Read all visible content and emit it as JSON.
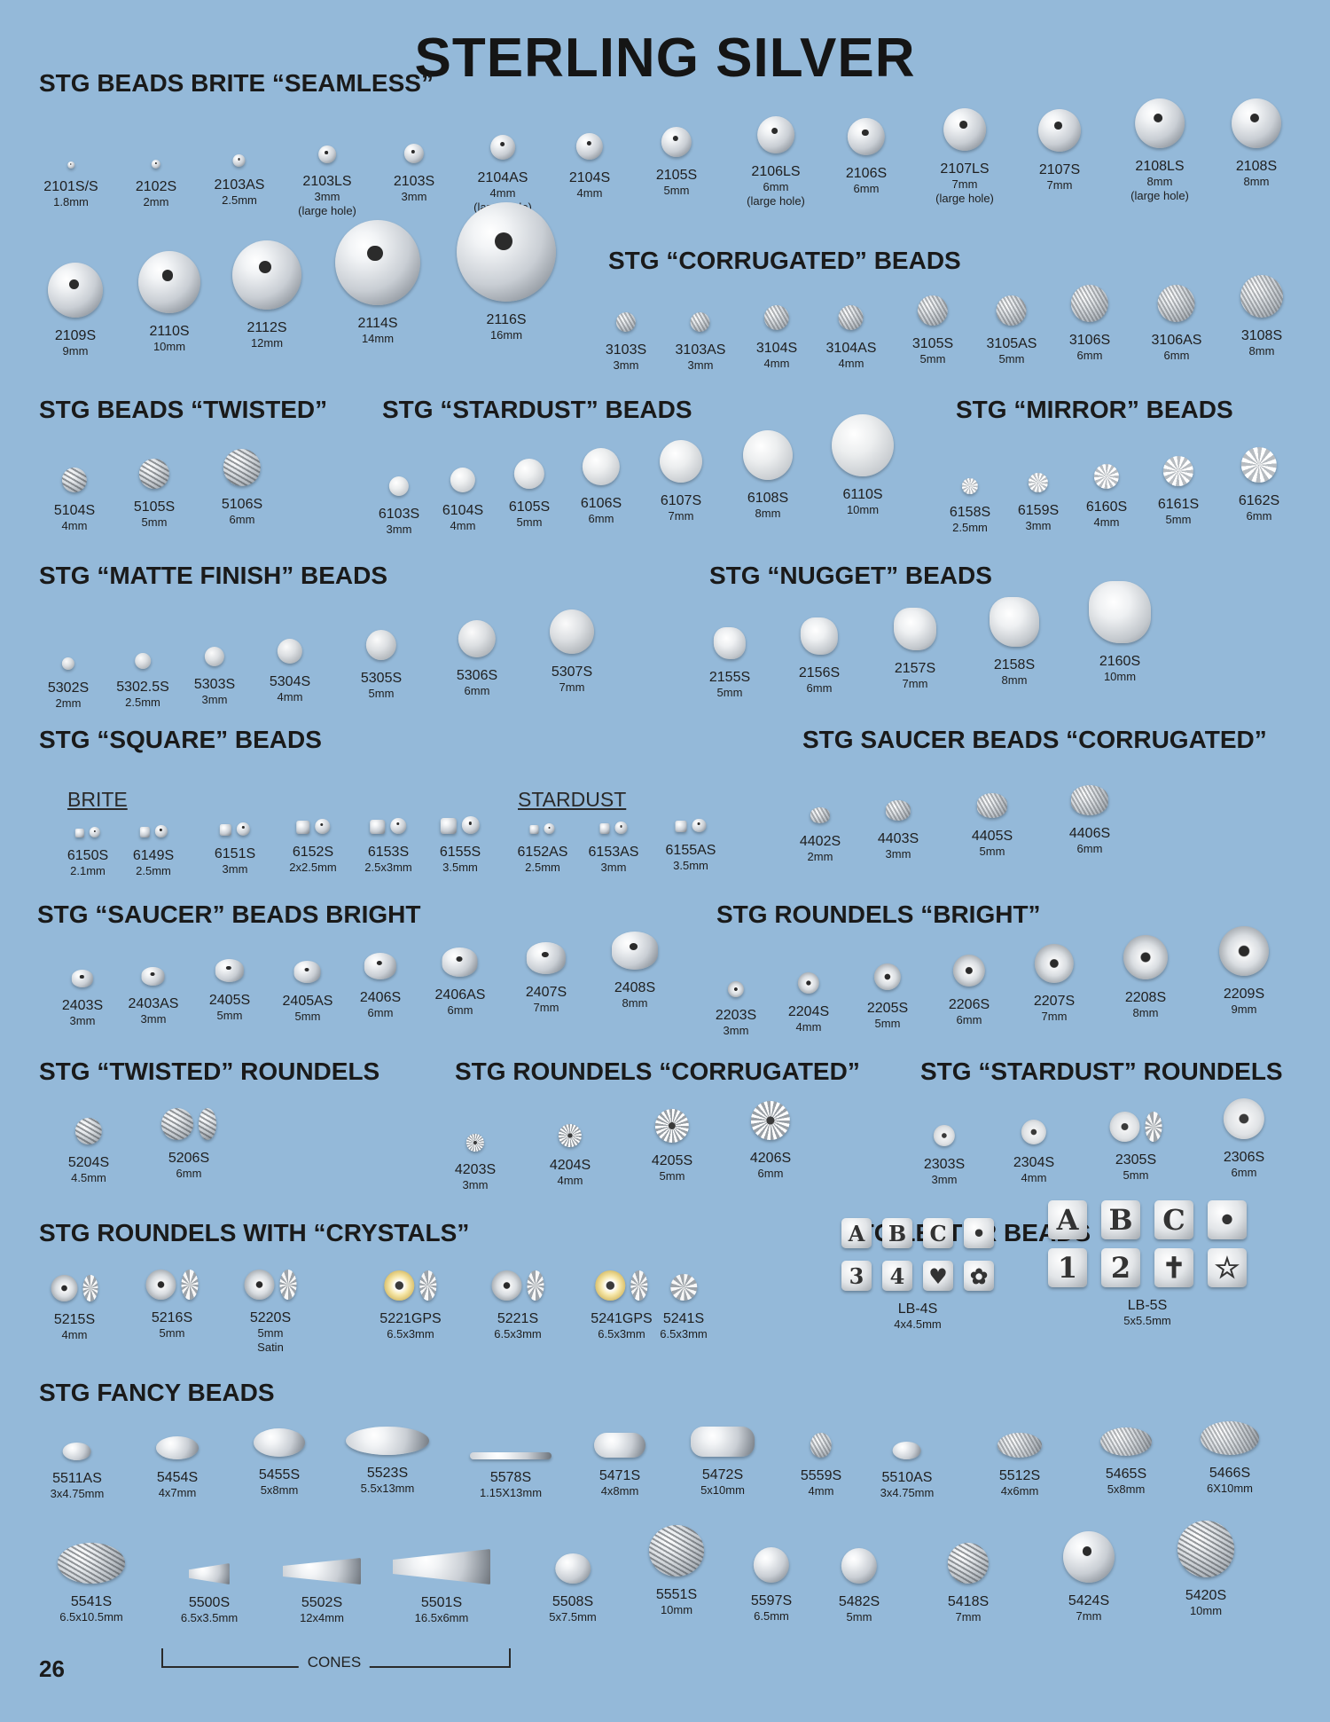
{
  "page": {
    "title": "STERLING SILVER",
    "page_number": "26",
    "cones_label": "CONES",
    "subs": {
      "brite": "BRITE",
      "stardust": "STARDUST"
    }
  },
  "sections": [
    {
      "id": "seamless",
      "title": "STG BEADS BRITE “SEAMLESS”",
      "items": [
        {
          "code": "2101S/S",
          "size": "1.8mm"
        },
        {
          "code": "2102S",
          "size": "2mm"
        },
        {
          "code": "2103AS",
          "size": "2.5mm"
        },
        {
          "code": "2103LS",
          "size": "3mm",
          "note": "(large hole)"
        },
        {
          "code": "2103S",
          "size": "3mm"
        },
        {
          "code": "2104AS",
          "size": "4mm",
          "note": "(large hole)"
        },
        {
          "code": "2104S",
          "size": "4mm"
        },
        {
          "code": "2105S",
          "size": "5mm"
        },
        {
          "code": "2106LS",
          "size": "6mm",
          "note": "(large hole)"
        },
        {
          "code": "2106S",
          "size": "6mm"
        },
        {
          "code": "2107LS",
          "size": "7mm",
          "note": "(large hole)"
        },
        {
          "code": "2107S",
          "size": "7mm"
        },
        {
          "code": "2108LS",
          "size": "8mm",
          "note": "(large hole)"
        },
        {
          "code": "2108S",
          "size": "8mm"
        },
        {
          "code": "2109S",
          "size": "9mm"
        },
        {
          "code": "2110S",
          "size": "10mm"
        },
        {
          "code": "2112S",
          "size": "12mm"
        },
        {
          "code": "2114S",
          "size": "14mm"
        },
        {
          "code": "2116S",
          "size": "16mm"
        }
      ]
    },
    {
      "id": "corrugated",
      "title": "STG “CORRUGATED” BEADS",
      "items": [
        {
          "code": "3103S",
          "size": "3mm"
        },
        {
          "code": "3103AS",
          "size": "3mm"
        },
        {
          "code": "3104S",
          "size": "4mm"
        },
        {
          "code": "3104AS",
          "size": "4mm"
        },
        {
          "code": "3105S",
          "size": "5mm"
        },
        {
          "code": "3105AS",
          "size": "5mm"
        },
        {
          "code": "3106S",
          "size": "6mm"
        },
        {
          "code": "3106AS",
          "size": "6mm"
        },
        {
          "code": "3108S",
          "size": "8mm"
        }
      ]
    },
    {
      "id": "twisted",
      "title": "STG BEADS “TWISTED”",
      "items": [
        {
          "code": "5104S",
          "size": "4mm"
        },
        {
          "code": "5105S",
          "size": "5mm"
        },
        {
          "code": "5106S",
          "size": "6mm"
        }
      ]
    },
    {
      "id": "stardust",
      "title": "STG “STARDUST” BEADS",
      "items": [
        {
          "code": "6103S",
          "size": "3mm"
        },
        {
          "code": "6104S",
          "size": "4mm"
        },
        {
          "code": "6105S",
          "size": "5mm"
        },
        {
          "code": "6106S",
          "size": "6mm"
        },
        {
          "code": "6107S",
          "size": "7mm"
        },
        {
          "code": "6108S",
          "size": "8mm"
        },
        {
          "code": "6110S",
          "size": "10mm"
        }
      ]
    },
    {
      "id": "mirror",
      "title": "STG “MIRROR” BEADS",
      "items": [
        {
          "code": "6158S",
          "size": "2.5mm"
        },
        {
          "code": "6159S",
          "size": "3mm"
        },
        {
          "code": "6160S",
          "size": "4mm"
        },
        {
          "code": "6161S",
          "size": "5mm"
        },
        {
          "code": "6162S",
          "size": "6mm"
        }
      ]
    },
    {
      "id": "matte",
      "title": "STG “MATTE FINISH” BEADS",
      "items": [
        {
          "code": "5302S",
          "size": "2mm"
        },
        {
          "code": "5302.5S",
          "size": "2.5mm"
        },
        {
          "code": "5303S",
          "size": "3mm"
        },
        {
          "code": "5304S",
          "size": "4mm"
        },
        {
          "code": "5305S",
          "size": "5mm"
        },
        {
          "code": "5306S",
          "size": "6mm"
        },
        {
          "code": "5307S",
          "size": "7mm"
        }
      ]
    },
    {
      "id": "nugget",
      "title": "STG “NUGGET” BEADS",
      "items": [
        {
          "code": "2155S",
          "size": "5mm"
        },
        {
          "code": "2156S",
          "size": "6mm"
        },
        {
          "code": "2157S",
          "size": "7mm"
        },
        {
          "code": "2158S",
          "size": "8mm"
        },
        {
          "code": "2160S",
          "size": "10mm"
        }
      ]
    },
    {
      "id": "square",
      "title": "STG “SQUARE” BEADS",
      "items": [
        {
          "code": "6150S",
          "size": "2.1mm"
        },
        {
          "code": "6149S",
          "size": "2.5mm"
        },
        {
          "code": "6151S",
          "size": "3mm"
        },
        {
          "code": "6152S",
          "size": "2x2.5mm"
        },
        {
          "code": "6153S",
          "size": "2.5x3mm"
        },
        {
          "code": "6155S",
          "size": "3.5mm"
        },
        {
          "code": "6152AS",
          "size": "2.5mm"
        },
        {
          "code": "6153AS",
          "size": "3mm"
        },
        {
          "code": "6155AS",
          "size": "3.5mm"
        }
      ]
    },
    {
      "id": "saucercorr",
      "title": "STG SAUCER BEADS “CORRUGATED”",
      "items": [
        {
          "code": "4402S",
          "size": "2mm"
        },
        {
          "code": "4403S",
          "size": "3mm"
        },
        {
          "code": "4405S",
          "size": "5mm"
        },
        {
          "code": "4406S",
          "size": "6mm"
        }
      ]
    },
    {
      "id": "saucerbright",
      "title": "STG “SAUCER” BEADS BRIGHT",
      "items": [
        {
          "code": "2403S",
          "size": "3mm"
        },
        {
          "code": "2403AS",
          "size": "3mm"
        },
        {
          "code": "2405S",
          "size": "5mm"
        },
        {
          "code": "2405AS",
          "size": "5mm"
        },
        {
          "code": "2406S",
          "size": "6mm"
        },
        {
          "code": "2406AS",
          "size": "6mm"
        },
        {
          "code": "2407S",
          "size": "7mm"
        },
        {
          "code": "2408S",
          "size": "8mm"
        }
      ]
    },
    {
      "id": "roundbright",
      "title": "STG ROUNDELS “BRIGHT”",
      "items": [
        {
          "code": "2203S",
          "size": "3mm"
        },
        {
          "code": "2204S",
          "size": "4mm"
        },
        {
          "code": "2205S",
          "size": "5mm"
        },
        {
          "code": "2206S",
          "size": "6mm"
        },
        {
          "code": "2207S",
          "size": "7mm"
        },
        {
          "code": "2208S",
          "size": "8mm"
        },
        {
          "code": "2209S",
          "size": "9mm"
        }
      ]
    },
    {
      "id": "twistround",
      "title": "STG “TWISTED” ROUNDELS",
      "items": [
        {
          "code": "5204S",
          "size": "4.5mm"
        },
        {
          "code": "5206S",
          "size": "6mm"
        }
      ]
    },
    {
      "id": "roundcorr",
      "title": "STG ROUNDELS “CORRUGATED”",
      "items": [
        {
          "code": "4203S",
          "size": "3mm"
        },
        {
          "code": "4204S",
          "size": "4mm"
        },
        {
          "code": "4205S",
          "size": "5mm"
        },
        {
          "code": "4206S",
          "size": "6mm"
        }
      ]
    },
    {
      "id": "roundstar",
      "title": "STG “STARDUST” ROUNDELS",
      "items": [
        {
          "code": "2303S",
          "size": "3mm"
        },
        {
          "code": "2304S",
          "size": "4mm"
        },
        {
          "code": "2305S",
          "size": "5mm"
        },
        {
          "code": "2306S",
          "size": "6mm"
        }
      ]
    },
    {
      "id": "crystals",
      "title": "STG ROUNDELS WITH “CRYSTALS”",
      "items": [
        {
          "code": "5215S",
          "size": "4mm"
        },
        {
          "code": "5216S",
          "size": "5mm"
        },
        {
          "code": "5220S",
          "size": "5mm",
          "note": "Satin"
        },
        {
          "code": "5221GPS",
          "size": "6.5x3mm"
        },
        {
          "code": "5221S",
          "size": "6.5x3mm"
        },
        {
          "code": "5241GPS",
          "size": "6.5x3mm"
        },
        {
          "code": "5241S",
          "size": "6.5x3mm"
        }
      ]
    },
    {
      "id": "letters",
      "title": "STG LETTER BEADS",
      "items": [
        {
          "code": "LB-4S",
          "size": "4x4.5mm",
          "glyphs": [
            "A",
            "B",
            "C",
            "•",
            "3",
            "4",
            "♥",
            "✿"
          ]
        },
        {
          "code": "LB-5S",
          "size": "5x5.5mm",
          "glyphs": [
            "A",
            "B",
            "C",
            "•",
            "1",
            "2",
            "✝",
            "☆"
          ]
        }
      ]
    },
    {
      "id": "fancy",
      "title": "STG FANCY BEADS",
      "items": [
        {
          "code": "5511AS",
          "size": "3x4.75mm"
        },
        {
          "code": "5454S",
          "size": "4x7mm"
        },
        {
          "code": "5455S",
          "size": "5x8mm"
        },
        {
          "code": "5523S",
          "size": "5.5x13mm"
        },
        {
          "code": "5578S",
          "size": "1.15X13mm"
        },
        {
          "code": "5471S",
          "size": "4x8mm"
        },
        {
          "code": "5472S",
          "size": "5x10mm"
        },
        {
          "code": "5559S",
          "size": "4mm"
        },
        {
          "code": "5510AS",
          "size": "3x4.75mm"
        },
        {
          "code": "5512S",
          "size": "4x6mm"
        },
        {
          "code": "5465S",
          "size": "5x8mm"
        },
        {
          "code": "5466S",
          "size": "6X10mm"
        },
        {
          "code": "5541S",
          "size": "6.5x10.5mm"
        },
        {
          "code": "5500S",
          "size": "6.5x3.5mm"
        },
        {
          "code": "5502S",
          "size": "12x4mm"
        },
        {
          "code": "5501S",
          "size": "16.5x6mm"
        },
        {
          "code": "5508S",
          "size": "5x7.5mm"
        },
        {
          "code": "5551S",
          "size": "10mm"
        },
        {
          "code": "5597S",
          "size": "6.5mm"
        },
        {
          "code": "5482S",
          "size": "5mm"
        },
        {
          "code": "5418S",
          "size": "7mm"
        },
        {
          "code": "5424S",
          "size": "7mm"
        },
        {
          "code": "5420S",
          "size": "10mm"
        }
      ]
    }
  ]
}
